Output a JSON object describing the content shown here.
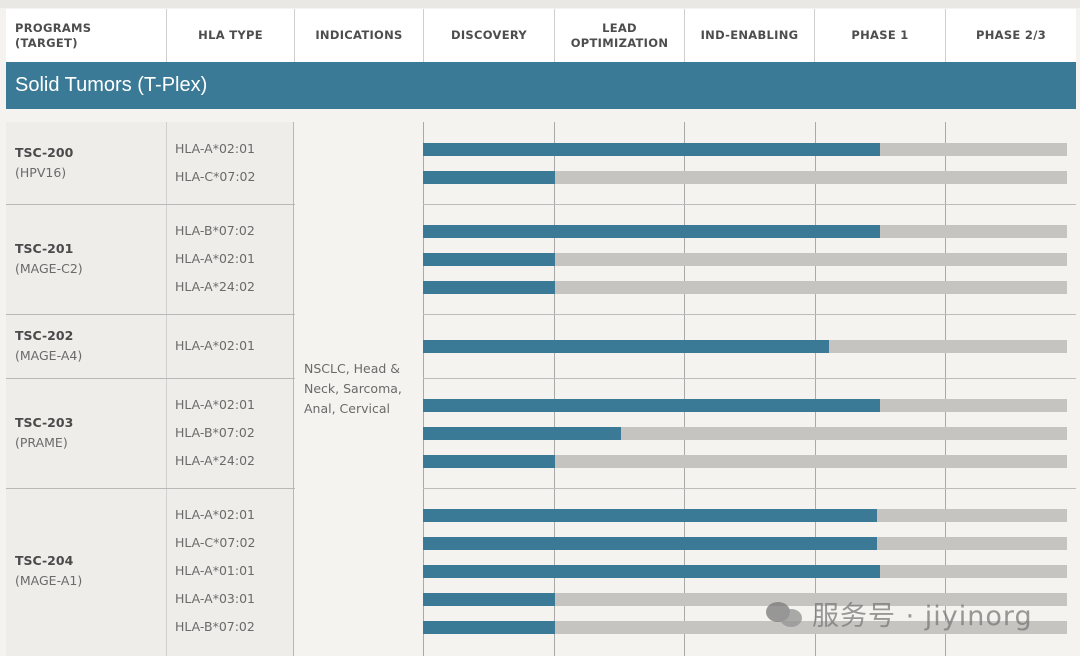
{
  "header": {
    "columns": [
      "PROGRAMS\n(TARGET)",
      "HLA TYPE",
      "INDICATIONS",
      "DISCOVERY",
      "LEAD\nOPTIMIZATION",
      "IND-ENABLING",
      "PHASE 1",
      "PHASE 2/3"
    ]
  },
  "banner": {
    "title": "Solid Tumors (T-Plex)"
  },
  "indications": "NSCLC, Head & Neck, Sarcoma, Anal, Cervical",
  "colors": {
    "accent": "#3a7a96",
    "track": "#c5c4c1"
  },
  "watermark": {
    "text": "服务号 · jiyinorg",
    "icon": "wechat-icon"
  },
  "chart_data": {
    "type": "bar",
    "orientation": "horizontal",
    "title": "Solid Tumors (T-Plex)",
    "stages": [
      "DISCOVERY",
      "LEAD OPTIMIZATION",
      "IND-ENABLING",
      "PHASE 1",
      "PHASE 2/3"
    ],
    "xlim": [
      0,
      5
    ],
    "programs": [
      {
        "code": "TSC-200",
        "target": "(HPV16)",
        "rows": [
          {
            "hla": "HLA-A*02:01",
            "progress": 3.47
          },
          {
            "hla": "HLA-C*07:02",
            "progress": 1.0
          }
        ]
      },
      {
        "code": "TSC-201",
        "target": "(MAGE-C2)",
        "rows": [
          {
            "hla": "HLA-B*07:02",
            "progress": 3.47
          },
          {
            "hla": "HLA-A*02:01",
            "progress": 1.0
          },
          {
            "hla": "HLA-A*24:02",
            "progress": 1.0
          }
        ]
      },
      {
        "code": "TSC-202",
        "target": "(MAGE-A4)",
        "rows": [
          {
            "hla": "HLA-A*02:01",
            "progress": 3.08
          }
        ]
      },
      {
        "code": "TSC-203",
        "target": "(PRAME)",
        "rows": [
          {
            "hla": "HLA-A*02:01",
            "progress": 3.47
          },
          {
            "hla": "HLA-B*07:02",
            "progress": 1.5
          },
          {
            "hla": "HLA-A*24:02",
            "progress": 1.0
          }
        ]
      },
      {
        "code": "TSC-204",
        "target": "(MAGE-A1)",
        "rows": [
          {
            "hla": "HLA-A*02:01",
            "progress": 3.45
          },
          {
            "hla": "HLA-C*07:02",
            "progress": 3.45
          },
          {
            "hla": "HLA-A*01:01",
            "progress": 3.47
          },
          {
            "hla": "HLA-A*03:01",
            "progress": 1.0
          },
          {
            "hla": "HLA-B*07:02",
            "progress": 1.0
          }
        ]
      }
    ]
  }
}
